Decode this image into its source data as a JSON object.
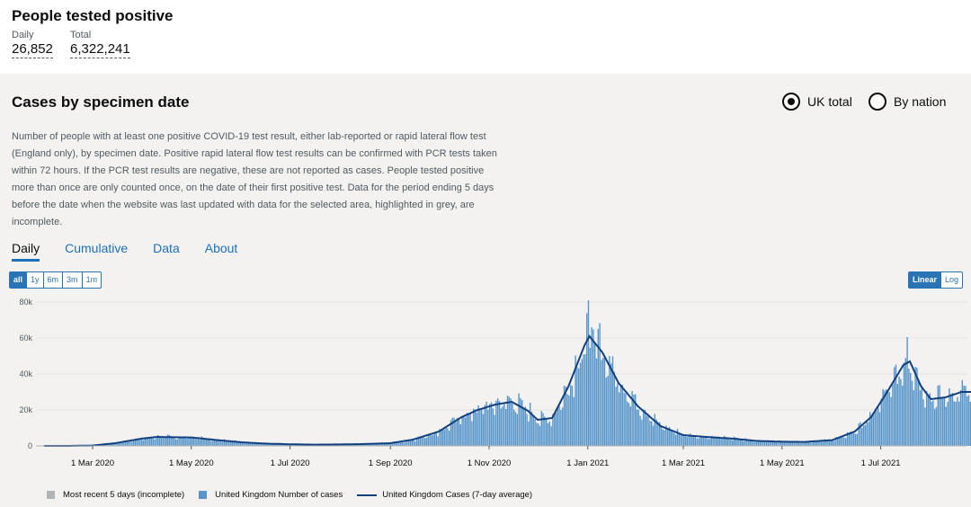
{
  "headline": {
    "title": "People tested positive",
    "daily_label": "Daily",
    "daily_value": "26,852",
    "total_label": "Total",
    "total_value": "6,322,241"
  },
  "card": {
    "title": "Cases by specimen date",
    "radio_uk": "UK total",
    "radio_nation": "By nation",
    "description": "Number of people with at least one positive COVID-19 test result, either lab-reported or rapid lateral flow test (England only), by specimen date. Positive rapid lateral flow test results can be confirmed with PCR tests taken within 72 hours. If the PCR test results are negative, these are not reported as cases. People tested positive more than once are only counted once, on the date of their first positive test. Data for the period ending 5 days before the date when the website was last updated with data for the selected area, highlighted in grey, are incomplete.",
    "tabs": [
      "Daily",
      "Cumulative",
      "Data",
      "About"
    ],
    "ranges": [
      "all",
      "1y",
      "6m",
      "3m",
      "1m"
    ],
    "scales": [
      "Linear",
      "Log"
    ]
  },
  "colors": {
    "bar": "#5694ca",
    "line": "#12407f",
    "incomplete": "#b1b4b6",
    "accent": "#2a73b5"
  },
  "chart_data": {
    "type": "bar",
    "x_start": "2020-01-31",
    "ylim": [
      0,
      80000
    ],
    "yticks": [
      "0",
      "20k",
      "40k",
      "60k",
      "80k"
    ],
    "xticks": [
      "1 Mar 2020",
      "1 May 2020",
      "1 Jul 2020",
      "1 Sep 2020",
      "1 Nov 2020",
      "1 Jan 2021",
      "1 Mar 2021",
      "1 May 2021",
      "1 Jul 2021"
    ],
    "xtick_days": [
      30,
      91,
      152,
      214,
      275,
      336,
      395,
      456,
      517
    ],
    "weekly_avg": [
      [
        "2020-01-31",
        0
      ],
      [
        "2020-02-15",
        0
      ],
      [
        "2020-03-01",
        200
      ],
      [
        "2020-03-15",
        1500
      ],
      [
        "2020-03-31",
        4000
      ],
      [
        "2020-04-10",
        5000
      ],
      [
        "2020-04-20",
        4800
      ],
      [
        "2020-05-01",
        4700
      ],
      [
        "2020-05-15",
        3400
      ],
      [
        "2020-06-01",
        2000
      ],
      [
        "2020-06-15",
        1300
      ],
      [
        "2020-07-01",
        900
      ],
      [
        "2020-07-15",
        700
      ],
      [
        "2020-08-01",
        800
      ],
      [
        "2020-08-15",
        1000
      ],
      [
        "2020-09-01",
        1500
      ],
      [
        "2020-09-15",
        3500
      ],
      [
        "2020-10-01",
        8000
      ],
      [
        "2020-10-15",
        16000
      ],
      [
        "2020-10-25",
        20000
      ],
      [
        "2020-11-05",
        23000
      ],
      [
        "2020-11-15",
        24500
      ],
      [
        "2020-11-25",
        19500
      ],
      [
        "2020-12-01",
        14500
      ],
      [
        "2020-12-10",
        15500
      ],
      [
        "2020-12-20",
        33000
      ],
      [
        "2020-12-30",
        56000
      ],
      [
        "2021-01-02",
        61000
      ],
      [
        "2021-01-10",
        52000
      ],
      [
        "2021-01-20",
        35000
      ],
      [
        "2021-02-01",
        22000
      ],
      [
        "2021-02-15",
        11000
      ],
      [
        "2021-03-01",
        6000
      ],
      [
        "2021-03-15",
        5000
      ],
      [
        "2021-04-01",
        4000
      ],
      [
        "2021-04-15",
        2800
      ],
      [
        "2021-05-01",
        2300
      ],
      [
        "2021-05-15",
        2200
      ],
      [
        "2021-06-01",
        3200
      ],
      [
        "2021-06-15",
        8000
      ],
      [
        "2021-06-25",
        16000
      ],
      [
        "2021-07-05",
        30000
      ],
      [
        "2021-07-15",
        45000
      ],
      [
        "2021-07-19",
        47000
      ],
      [
        "2021-07-26",
        33000
      ],
      [
        "2021-08-01",
        26000
      ],
      [
        "2021-08-10",
        27000
      ],
      [
        "2021-08-20",
        30000
      ],
      [
        "2021-08-26",
        30000
      ]
    ],
    "incomplete_last_days": 5,
    "legend": [
      "Most recent 5 days (incomplete)",
      "United Kingdom Number of cases",
      "United Kingdom Cases (7-day average)"
    ]
  }
}
